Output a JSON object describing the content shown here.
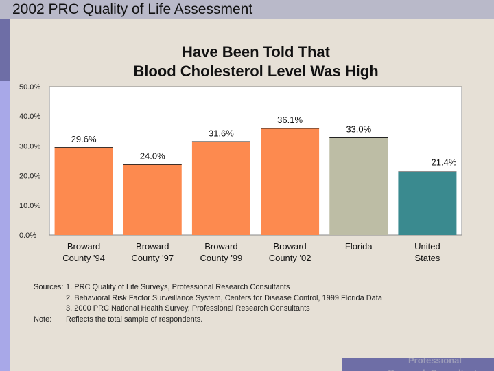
{
  "header": {
    "title": "2002 PRC Quality of Life Assessment"
  },
  "chart_data": {
    "type": "bar",
    "title_lines": [
      "Have Been Told That",
      "Blood Cholesterol Level Was High"
    ],
    "categories": [
      [
        "Broward",
        "County '94"
      ],
      [
        "Broward",
        "County '97"
      ],
      [
        "Broward",
        "County '99"
      ],
      [
        "Broward",
        "County '02"
      ],
      [
        "Florida"
      ],
      [
        "United",
        "States"
      ]
    ],
    "values": [
      29.6,
      24.0,
      31.6,
      36.1,
      33.0,
      21.4
    ],
    "value_labels": [
      "29.6%",
      "24.0%",
      "31.6%",
      "36.1%",
      "33.0%",
      "21.4%"
    ],
    "bar_colors": [
      "#fd8a4f",
      "#fd8a4f",
      "#fd8a4f",
      "#fd8a4f",
      "#bdbda5",
      "#3a8a8f"
    ],
    "ylim": [
      0,
      50
    ],
    "yticks": [
      "0.0%",
      "10.0%",
      "20.0%",
      "30.0%",
      "40.0%",
      "50.0%"
    ],
    "ytick_values": [
      0,
      10,
      20,
      30,
      40,
      50
    ],
    "xlabel": "",
    "ylabel": "",
    "grid": false
  },
  "sources": {
    "label": "Sources:",
    "items": [
      "1. PRC Quality of Life Surveys, Professional Research Consultants",
      "2. Behavioral Risk Factor Surveillance System, Centers for Disease Control, 1999 Florida Data",
      "3. 2000 PRC National Health Survey, Professional Research Consultants"
    ],
    "note_label": "Note:",
    "note": "Reflects the total sample of respondents."
  },
  "footer": {
    "brand": "Professional Research Consultants"
  }
}
